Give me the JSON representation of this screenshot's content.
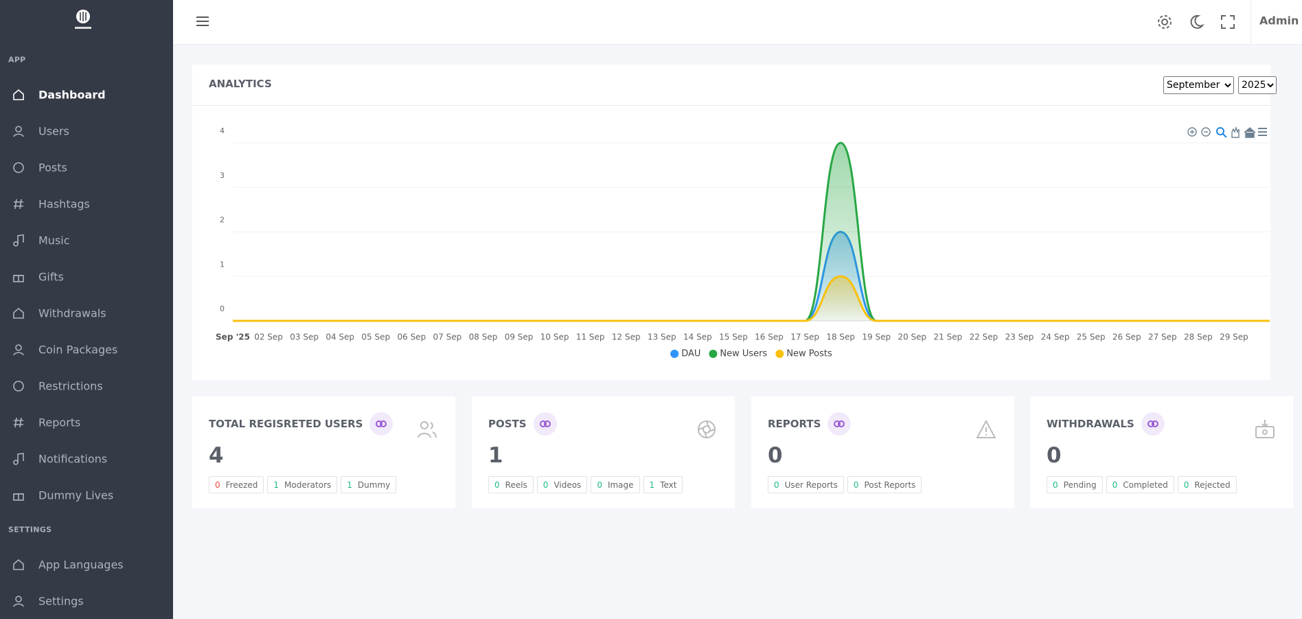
{
  "sidebar": {
    "sections": [
      {
        "title": "APP",
        "items": [
          "Dashboard",
          "Users",
          "Posts",
          "Hashtags",
          "Music",
          "Gifts",
          "Withdrawals",
          "Coin Packages",
          "Restrictions",
          "Reports",
          "Notifications",
          "Dummy Lives"
        ]
      },
      {
        "title": "SETTINGS",
        "items": [
          "App Languages",
          "Settings"
        ]
      }
    ]
  },
  "header": {
    "user": "Admin"
  },
  "filters": {
    "month": "September",
    "year": "2025"
  },
  "chart_data": {
    "type": "area",
    "title": "ANALYTICS",
    "categories": [
      "Sep '25",
      "02 Sep",
      "03 Sep",
      "04 Sep",
      "05 Sep",
      "06 Sep",
      "07 Sep",
      "08 Sep",
      "09 Sep",
      "10 Sep",
      "11 Sep",
      "12 Sep",
      "13 Sep",
      "14 Sep",
      "15 Sep",
      "16 Sep",
      "17 Sep",
      "18 Sep",
      "19 Sep",
      "20 Sep",
      "21 Sep",
      "22 Sep",
      "23 Sep",
      "24 Sep",
      "25 Sep",
      "26 Sep",
      "27 Sep",
      "28 Sep",
      "29 Sep",
      null
    ],
    "series": [
      {
        "name": "DAU",
        "color": "#2e93fa",
        "values": [
          0,
          0,
          0,
          0,
          0,
          0,
          0,
          0,
          0,
          0,
          0,
          0,
          0,
          0,
          0,
          0,
          0,
          2,
          0,
          0,
          0,
          0,
          0,
          0,
          0,
          0,
          0,
          0,
          0,
          0
        ]
      },
      {
        "name": "New Users",
        "color": "#28a745",
        "values": [
          0,
          0,
          0,
          0,
          0,
          0,
          0,
          0,
          0,
          0,
          0,
          0,
          0,
          0,
          0,
          0,
          0,
          4,
          0,
          0,
          0,
          0,
          0,
          0,
          0,
          0,
          0,
          0,
          0,
          0
        ]
      },
      {
        "name": "New Posts",
        "color": "#f9c00f",
        "values": [
          0,
          0,
          0,
          0,
          0,
          0,
          0,
          0,
          0,
          0,
          0,
          0,
          0,
          0,
          0,
          0,
          0,
          1,
          0,
          0,
          0,
          0,
          0,
          0,
          0,
          0,
          0,
          0,
          0,
          0
        ]
      }
    ],
    "ylim": [
      0,
      4
    ],
    "yticks": [
      0,
      1,
      2,
      3,
      4
    ],
    "grid": true,
    "legend": "bottom"
  },
  "cards": [
    {
      "title": "TOTAL REGISRETED USERS",
      "value": 4,
      "badges": [
        {
          "count": 0,
          "label": "Freezed",
          "color": "#e74c3c"
        },
        {
          "count": 1,
          "label": "Moderators",
          "color": "#1cbb8c"
        },
        {
          "count": 1,
          "label": "Dummy",
          "color": "#1cbb8c"
        }
      ]
    },
    {
      "title": "POSTS",
      "value": 1,
      "badges": [
        {
          "count": 0,
          "label": "Reels",
          "color": "#1cbb8c"
        },
        {
          "count": 0,
          "label": "Videos",
          "color": "#1cbb8c"
        },
        {
          "count": 0,
          "label": "Image",
          "color": "#1cbb8c"
        },
        {
          "count": 1,
          "label": "Text",
          "color": "#1cbb8c"
        }
      ]
    },
    {
      "title": "REPORTS",
      "value": 0,
      "badges": [
        {
          "count": 0,
          "label": "User Reports",
          "color": "#1cbb8c"
        },
        {
          "count": 0,
          "label": "Post Reports",
          "color": "#1cbb8c"
        }
      ]
    },
    {
      "title": "WITHDRAWALS",
      "value": 0,
      "badges": [
        {
          "count": 0,
          "label": "Pending",
          "color": "#1cbb8c"
        },
        {
          "count": 0,
          "label": "Completed",
          "color": "#1cbb8c"
        },
        {
          "count": 0,
          "label": "Rejected",
          "color": "#1cbb8c"
        }
      ]
    }
  ]
}
